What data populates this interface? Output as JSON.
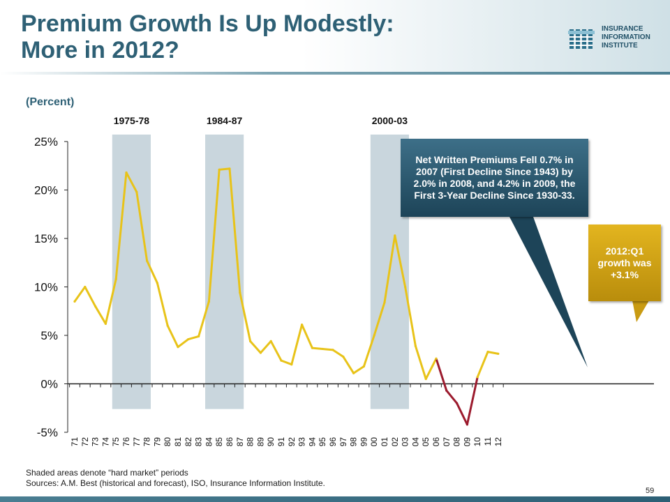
{
  "header": {
    "title_line1": "Premium Growth Is Up Modestly:",
    "title_line2": "More in 2012?",
    "logo_lines": [
      "INSURANCE",
      "INFORMATION",
      "INSTITUTE"
    ]
  },
  "callouts": {
    "dark": "Net Written Premiums Fell 0.7% in 2007 (First Decline Since 1943) by 2.0% in 2008, and 4.2% in 2009, the First 3-Year Decline Since 1930-33.",
    "gold": "2012:Q1 growth was +3.1%"
  },
  "footer": {
    "note": "Shaded areas denote “hard market” periods",
    "sources": "Sources:  A.M. Best (historical and forecast), ISO, Insurance Information Institute.",
    "page_number": "59"
  },
  "colors": {
    "title": "#2e6075",
    "shading": "#c9d6dd",
    "line_positive": "#e8c319",
    "line_negative": "#9c1b2e",
    "callout_dark": "#1d4458",
    "callout_gold": "#c99b12"
  },
  "chart_data": {
    "type": "line",
    "ylabel": "(Percent)",
    "ylim": [
      -5,
      25
    ],
    "yticks": [
      "25%",
      "20%",
      "15%",
      "10%",
      "5%",
      "0%",
      "-5%"
    ],
    "ytick_values": [
      25,
      20,
      15,
      10,
      5,
      0,
      -5
    ],
    "categories": [
      "71",
      "72",
      "73",
      "74",
      "75",
      "76",
      "77",
      "78",
      "79",
      "80",
      "81",
      "82",
      "83",
      "84",
      "85",
      "86",
      "87",
      "88",
      "89",
      "90",
      "91",
      "92",
      "93",
      "94",
      "95",
      "96",
      "97",
      "98",
      "99",
      "00",
      "01",
      "02",
      "03",
      "04",
      "05",
      "06",
      "07",
      "08",
      "09",
      "10",
      "11",
      "12"
    ],
    "series": [
      {
        "values": [
          8.5,
          10.0,
          8.0,
          6.2,
          10.8,
          21.8,
          19.8,
          12.7,
          10.4,
          6.0,
          3.8,
          4.6,
          4.9,
          8.5,
          22.1,
          22.2,
          9.4,
          4.4,
          3.2,
          4.4,
          2.4,
          2.0,
          6.1,
          3.7,
          3.6,
          3.5,
          2.8,
          1.1,
          1.8,
          5.0,
          8.4,
          15.3,
          10.0,
          3.9,
          0.5,
          2.6,
          -0.7,
          -2.0,
          -4.2,
          0.7,
          3.3,
          3.1
        ]
      }
    ],
    "shaded_periods": [
      {
        "label": "1975-78",
        "from": "75",
        "to": "78"
      },
      {
        "label": "1984-87",
        "from": "84",
        "to": "87"
      },
      {
        "label": "2000-03",
        "from": "00",
        "to": "03"
      }
    ],
    "grid": false
  }
}
